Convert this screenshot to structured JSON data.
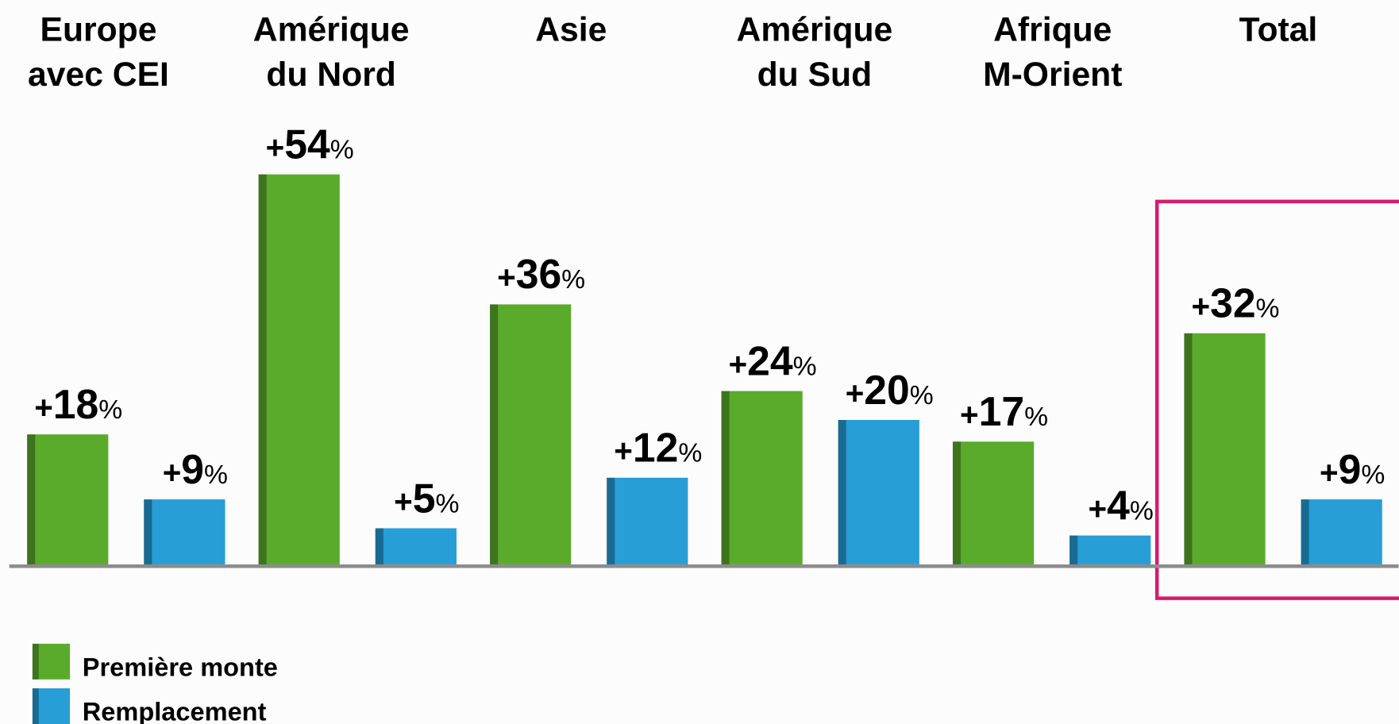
{
  "chart_data": {
    "type": "bar",
    "categories": [
      [
        "Europe",
        "avec CEI"
      ],
      [
        "Amérique",
        "du Nord"
      ],
      [
        "Asie"
      ],
      [
        "Amérique",
        "du Sud"
      ],
      [
        "Afrique",
        "M-Orient"
      ],
      [
        "Total"
      ]
    ],
    "series": [
      {
        "name": "Première monte",
        "color": "#5aab2b",
        "values": [
          18,
          54,
          36,
          24,
          17,
          32
        ],
        "value_labels": [
          "+18%",
          "+54%",
          "+36%",
          "+24%",
          "+17%",
          "+32%"
        ]
      },
      {
        "name": "Remplacement",
        "color": "#279ed6",
        "values": [
          9,
          5,
          12,
          20,
          4,
          9
        ],
        "value_labels": [
          "+9%",
          "+5%",
          "+12%",
          "+20%",
          "+4%",
          "+9%"
        ]
      }
    ],
    "legend": "bottom-left"
  }
}
